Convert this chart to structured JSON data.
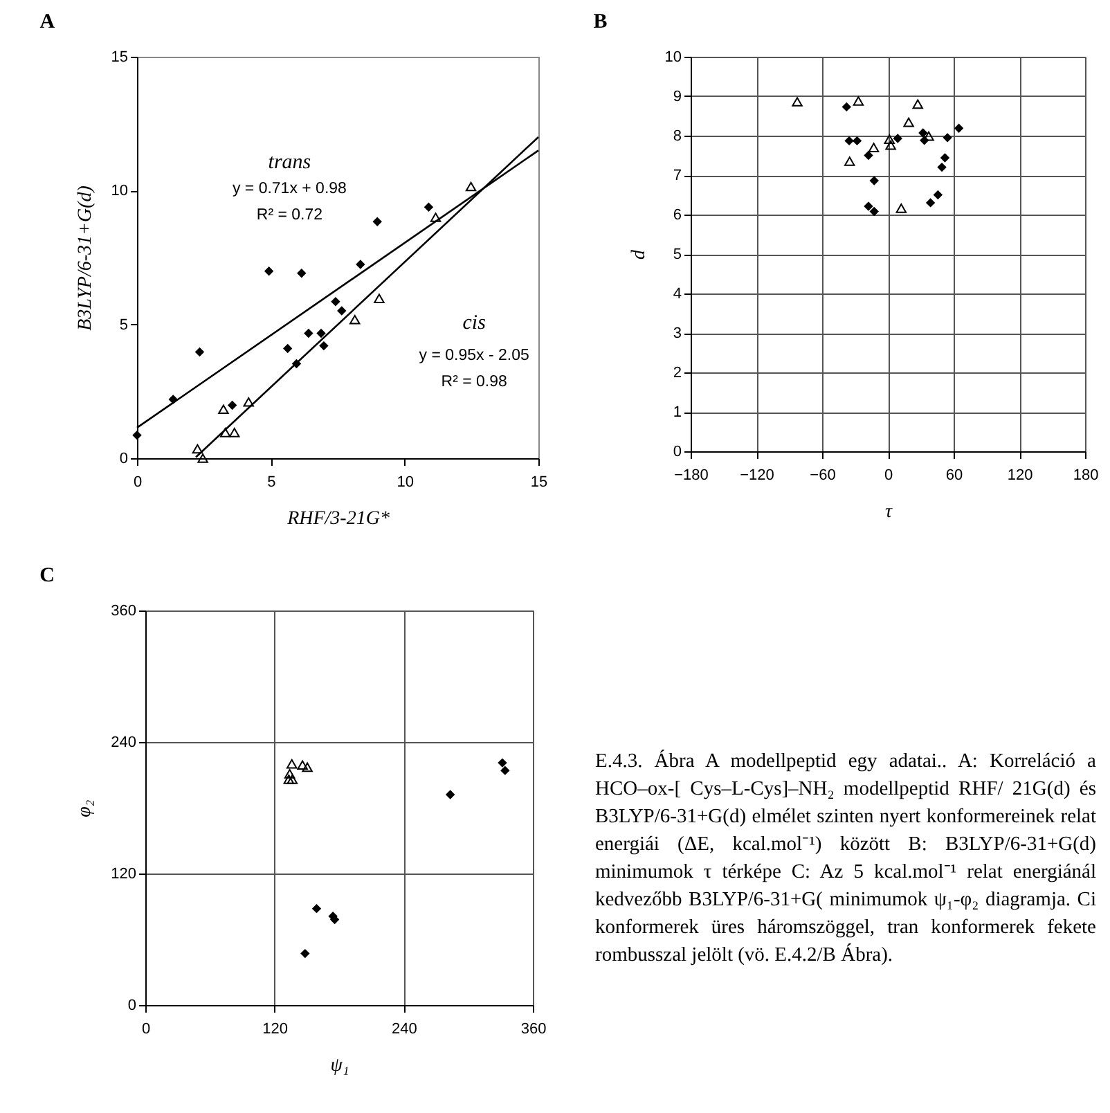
{
  "chart_data": [
    {
      "type": "scatter",
      "title": "A",
      "xlabel": "RHF/3-21G*",
      "ylabel": "B3LYP/6-31+G(d)",
      "xlim": [
        0,
        15
      ],
      "ylim": [
        0,
        15
      ],
      "xticks": [
        0,
        5,
        10,
        15
      ],
      "yticks": [
        0,
        5,
        10,
        15
      ],
      "grid": false,
      "series": [
        {
          "color": "#000000",
          "marker": "diamond",
          "x": [
            0,
            1.35,
            2.34,
            3.56,
            4.93,
            5.63,
            5.96,
            6.15,
            6.41,
            6.88,
            6.98,
            7.42,
            7.65,
            8.35,
            8.98,
            10.9
          ],
          "values": [
            0.86,
            2.2,
            3.97,
            1.98,
            6.99,
            4.1,
            3.53,
            6.91,
            4.67,
            4.67,
            4.2,
            5.85,
            5.51,
            7.24,
            8.84,
            9.38
          ]
        },
        {
          "color": "#000000",
          "marker": "triangle",
          "x": [
            2.26,
            2.46,
            3.23,
            3.3,
            3.64,
            4.17,
            8.14,
            9.05,
            11.16,
            12.48
          ],
          "values": [
            0.35,
            0.0,
            1.83,
            0.96,
            0.96,
            2.1,
            5.18,
            5.97,
            9.0,
            10.15
          ]
        },
        {
          "type": "line",
          "color": "#000000",
          "x": [
            0,
            15
          ],
          "values": [
            1.14,
            11.5
          ]
        },
        {
          "type": "line",
          "color": "#000000",
          "x": [
            2.2,
            15
          ],
          "values": [
            0.04,
            12.0
          ]
        }
      ],
      "annotations": [
        "trans",
        "y = 0.71x + 0.98",
        "R² = 0.72",
        "cis",
        "y = 0.95x - 2.05",
        "R² = 0.98"
      ]
    },
    {
      "type": "scatter",
      "title": "B",
      "xlabel": "τ",
      "ylabel": "d",
      "xlim": [
        -180,
        180
      ],
      "ylim": [
        0,
        10
      ],
      "xticks": [
        -180,
        -120,
        -60,
        0,
        60,
        120,
        180
      ],
      "yticks": [
        0,
        1,
        2,
        3,
        4,
        5,
        6,
        7,
        8,
        9,
        10
      ],
      "grid": true,
      "series": [
        {
          "color": "#000000",
          "marker": "diamond",
          "x": [
            -37.7,
            -35.3,
            -28.1,
            -17.7,
            -12.5,
            -17.7,
            -12.5,
            9.0,
            32.1,
            33.3,
            54.4,
            64.8,
            52.1,
            49.3,
            45.7,
            38.9
          ],
          "values": [
            8.73,
            7.87,
            7.87,
            7.5,
            6.86,
            6.21,
            6.08,
            7.93,
            8.07,
            7.88,
            7.95,
            8.19,
            7.44,
            7.2,
            6.5,
            6.3
          ]
        },
        {
          "color": "#000000",
          "marker": "triangle",
          "x": [
            -82.7,
            -26.9,
            -34.9,
            -12.9,
            1.4,
            2.6,
            19.0,
            27.3,
            37.3,
            12.2
          ],
          "values": [
            8.86,
            8.88,
            7.35,
            7.7,
            7.91,
            7.76,
            8.34,
            8.8,
            7.99,
            6.16
          ]
        }
      ]
    },
    {
      "type": "scatter",
      "title": "C",
      "xlabel": "ψ₁",
      "ylabel": "φ₂",
      "xlim": [
        0,
        360
      ],
      "ylim": [
        0,
        360
      ],
      "xticks": [
        0,
        120,
        240,
        360
      ],
      "yticks": [
        0,
        120,
        240,
        360
      ],
      "grid": true,
      "series": [
        {
          "color": "#000000",
          "marker": "diamond",
          "x": [
            283.3,
            331.7,
            334.2,
            159.1,
            174.3,
            175.9,
            148.4
          ],
          "values": [
            192,
            221,
            214,
            88,
            81,
            78,
            47
          ]
        },
        {
          "color": "#000000",
          "marker": "triangle",
          "x": [
            136.1,
            134.1,
            133.3,
            136.5,
            146.0,
            150.5
          ],
          "values": [
            220,
            211,
            206,
            206,
            219,
            217
          ]
        }
      ]
    },
    {
      "type": "other",
      "annotations": [
        "E.4.3. Ábra    A modellpeptid egy adatai.. A: Korreláció a HCO–ox-[ Cys–L-Cys]–NH₂ modellpeptid RHF/ 21G(d) és B3LYP/6-31+G(d) elmélet szinten nyert konformereinek relat energiái (ΔE, kcal.mol⁻¹) között B: B3LYP/6-31+G(d) minimumok τ térképe C: Az 5 kcal.mol⁻¹ relat energiánál kedvezőbb B3LYP/6-31+G( minimumok ψ₁-φ₂ diagramja. Ci konformerek üres háromszöggel, tran konformerek fekete rombusszal jelölt (vö. E.4.2/B Ábra)."
      ]
    }
  ]
}
